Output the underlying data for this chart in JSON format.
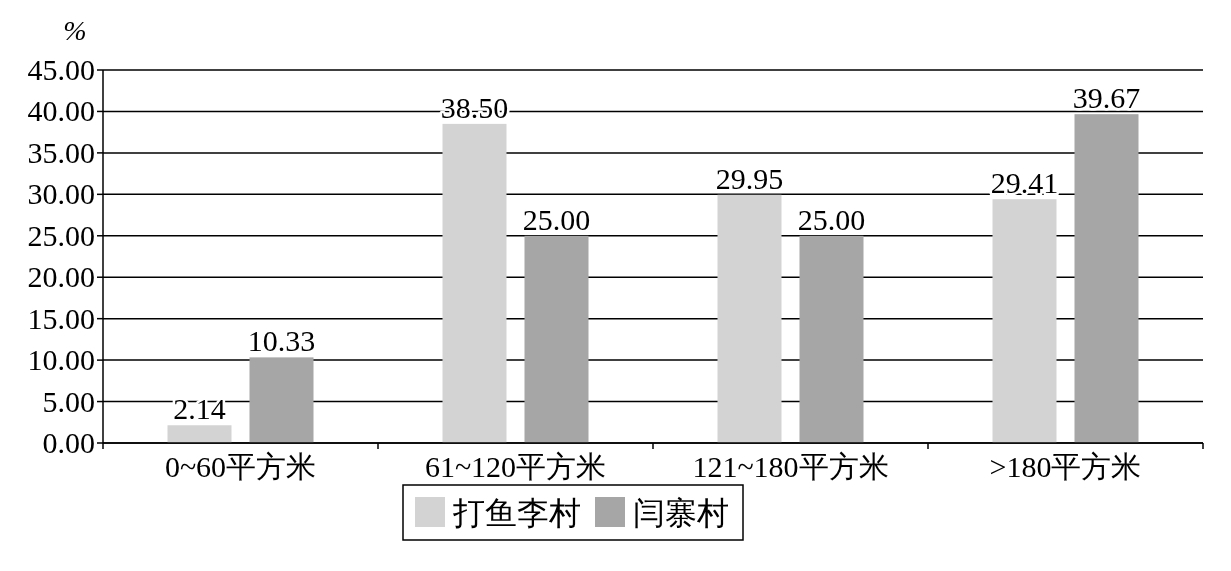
{
  "chart_data": {
    "type": "bar",
    "ylabel": "%",
    "categories": [
      "0~60平方米",
      "61~120平方米",
      "121~180平方米",
      ">180平方米"
    ],
    "series": [
      {
        "name": "打鱼李村",
        "color": "#d3d3d3",
        "values": [
          2.14,
          38.5,
          29.95,
          29.41
        ],
        "value_labels": [
          "2.14",
          "38.50",
          "29.95",
          "29.41"
        ]
      },
      {
        "name": "闫寨村",
        "color": "#a6a6a6",
        "values": [
          10.33,
          25.0,
          25.0,
          39.67
        ],
        "value_labels": [
          "10.33",
          "25.00",
          "25.00",
          "39.67"
        ]
      }
    ],
    "ylim": [
      0,
      45
    ],
    "yticks": [
      {
        "value": 0,
        "label": "0.00"
      },
      {
        "value": 5,
        "label": "5.00"
      },
      {
        "value": 10,
        "label": "10.00"
      },
      {
        "value": 15,
        "label": "15.00"
      },
      {
        "value": 20,
        "label": "20.00"
      },
      {
        "value": 25,
        "label": "25.00"
      },
      {
        "value": 30,
        "label": "30.00"
      },
      {
        "value": 35,
        "label": "35.00"
      },
      {
        "value": 40,
        "label": "40.00"
      },
      {
        "value": 45,
        "label": "45.00"
      }
    ],
    "grid": "y",
    "legend": "bottom"
  }
}
